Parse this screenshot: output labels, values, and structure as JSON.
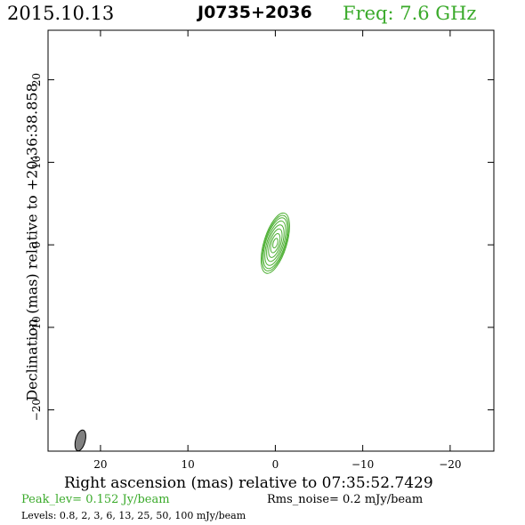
{
  "header": {
    "date": "2015.10.13",
    "source": "J0735+2036",
    "freq": "Freq:  7.6  GHz"
  },
  "footer": {
    "peak": "Peak_lev=   0.152  Jy/beam",
    "rms": "Rms_noise=    0.2  mJy/beam",
    "levels": "Levels: 0.8,    2,    3,    6,   13,   25,   50, 100  mJy/beam"
  },
  "colors": {
    "accent": "#3aaa2a",
    "contour": "#4caf32",
    "beam_fill": "#808080",
    "axis": "#000000"
  },
  "chart_data": {
    "type": "contour",
    "title": "J0735+2036",
    "xlabel": "Right ascension (mas) relative to 07:35:52.7429",
    "ylabel": "Declination (mas) relative to +20:36:38.858",
    "xlim": [
      26,
      -25
    ],
    "ylim": [
      -25,
      26
    ],
    "x_ticks": [
      20,
      10,
      0,
      -10,
      -20
    ],
    "y_ticks": [
      20,
      10,
      0,
      -10,
      -20
    ],
    "x_tick_labels": [
      "20",
      "10",
      "0",
      "−10",
      "−20"
    ],
    "y_tick_labels": [
      "20",
      "10",
      "0",
      "−10",
      "−20"
    ],
    "peak_jy_per_beam": 0.152,
    "rms_noise_mjy_per_beam": 0.2,
    "levels_mjy_per_beam": [
      0.8,
      2,
      3,
      6,
      13,
      25,
      50,
      100
    ],
    "component": {
      "center_x_mas": 0.0,
      "center_y_mas": 0.2,
      "position_angle_deg": 17,
      "contours": [
        {
          "level": 0.8,
          "major": 3.8,
          "minor": 1.3
        },
        {
          "level": 2,
          "major": 3.5,
          "minor": 1.2
        },
        {
          "level": 3,
          "major": 3.2,
          "minor": 1.1
        },
        {
          "level": 6,
          "major": 2.8,
          "minor": 0.95
        },
        {
          "level": 13,
          "major": 2.3,
          "minor": 0.8
        },
        {
          "level": 25,
          "major": 1.8,
          "minor": 0.62
        },
        {
          "level": 50,
          "major": 1.2,
          "minor": 0.45
        },
        {
          "level": 100,
          "major": 0.6,
          "minor": 0.25
        }
      ]
    },
    "beam": {
      "center_x_mas": 22.3,
      "center_y_mas": -23.7,
      "major_mas": 1.3,
      "minor_mas": 0.55,
      "position_angle_deg": 15
    }
  }
}
